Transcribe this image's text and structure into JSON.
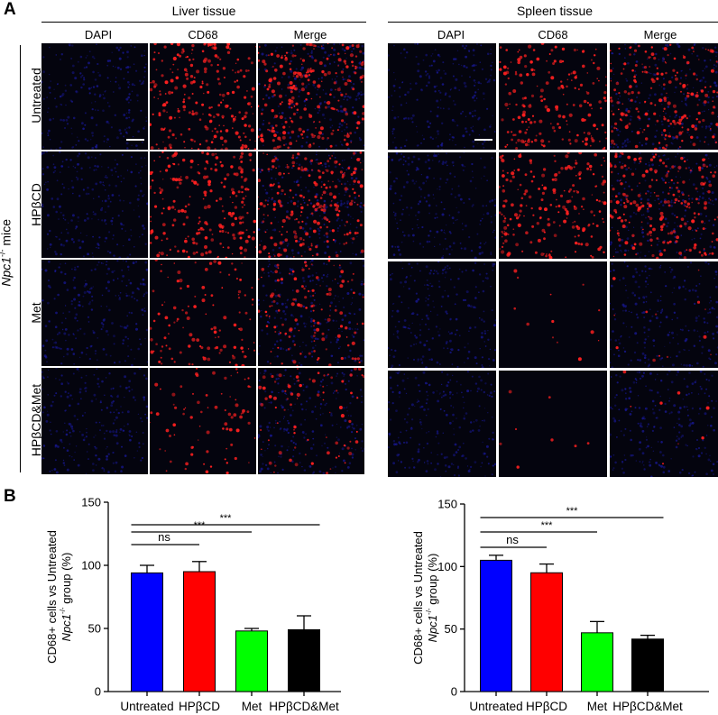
{
  "panel_a": {
    "letter": "A",
    "group_label_main": "Npc1",
    "group_label_sup": "-/-",
    "group_label_suffix": " mice",
    "liver": {
      "title": "Liver tissue",
      "columns": [
        "DAPI",
        "CD68",
        "Merge"
      ],
      "rows": [
        "Untreated",
        "HPβCD",
        "Met",
        "HPβCD&Met"
      ],
      "cd68_intensity": [
        0.9,
        0.85,
        0.45,
        0.3
      ]
    },
    "spleen": {
      "title": "Spleen tissue",
      "columns": [
        "DAPI",
        "CD68",
        "Merge"
      ],
      "rows": [
        "Untreated",
        "HPβCD",
        "Met",
        "HPβCD&Met"
      ],
      "cd68_intensity": [
        0.75,
        0.8,
        0.05,
        0.03
      ]
    }
  },
  "panel_b": {
    "letter": "B"
  },
  "colors": {
    "untreated": "#0000ff",
    "hpbcd": "#ff0000",
    "met": "#00ff00",
    "combo": "#000000",
    "dapi": "#1a1aa0",
    "cd68": "#ff2020"
  },
  "chart_data": [
    {
      "type": "bar",
      "title": "",
      "ylabel_line1": "CD68+ cells vs Untreated",
      "ylabel_line2_main": "Npc1",
      "ylabel_line2_sup": "-/-",
      "ylabel_line2_suffix": " group (%)",
      "categories": [
        "Untreated",
        "HPβCD",
        "Met",
        "HPβCD&Met"
      ],
      "values": [
        94,
        95,
        48,
        49
      ],
      "errors": [
        6,
        8,
        2,
        11
      ],
      "ylim": [
        0,
        150
      ],
      "yticks": [
        0,
        50,
        100,
        150
      ],
      "comparisons": [
        {
          "from": 0,
          "to": 1,
          "label": "ns"
        },
        {
          "from": 0,
          "to": 2,
          "label": "***"
        },
        {
          "from": 0,
          "to": 3,
          "label": "***"
        }
      ]
    },
    {
      "type": "bar",
      "title": "",
      "ylabel_line1": "CD68+ cells vs Untreated",
      "ylabel_line2_main": "Npc1",
      "ylabel_line2_sup": "-/-",
      "ylabel_line2_suffix": " group (%)",
      "categories": [
        "Untreated",
        "HPβCD",
        "Met",
        "HPβCD&Met"
      ],
      "values": [
        105,
        95,
        47,
        42
      ],
      "errors": [
        4,
        7,
        9,
        3
      ],
      "ylim": [
        0,
        150
      ],
      "yticks": [
        0,
        50,
        100,
        150
      ],
      "comparisons": [
        {
          "from": 0,
          "to": 1,
          "label": "ns"
        },
        {
          "from": 0,
          "to": 2,
          "label": "***"
        },
        {
          "from": 0,
          "to": 3,
          "label": "***"
        }
      ]
    }
  ]
}
